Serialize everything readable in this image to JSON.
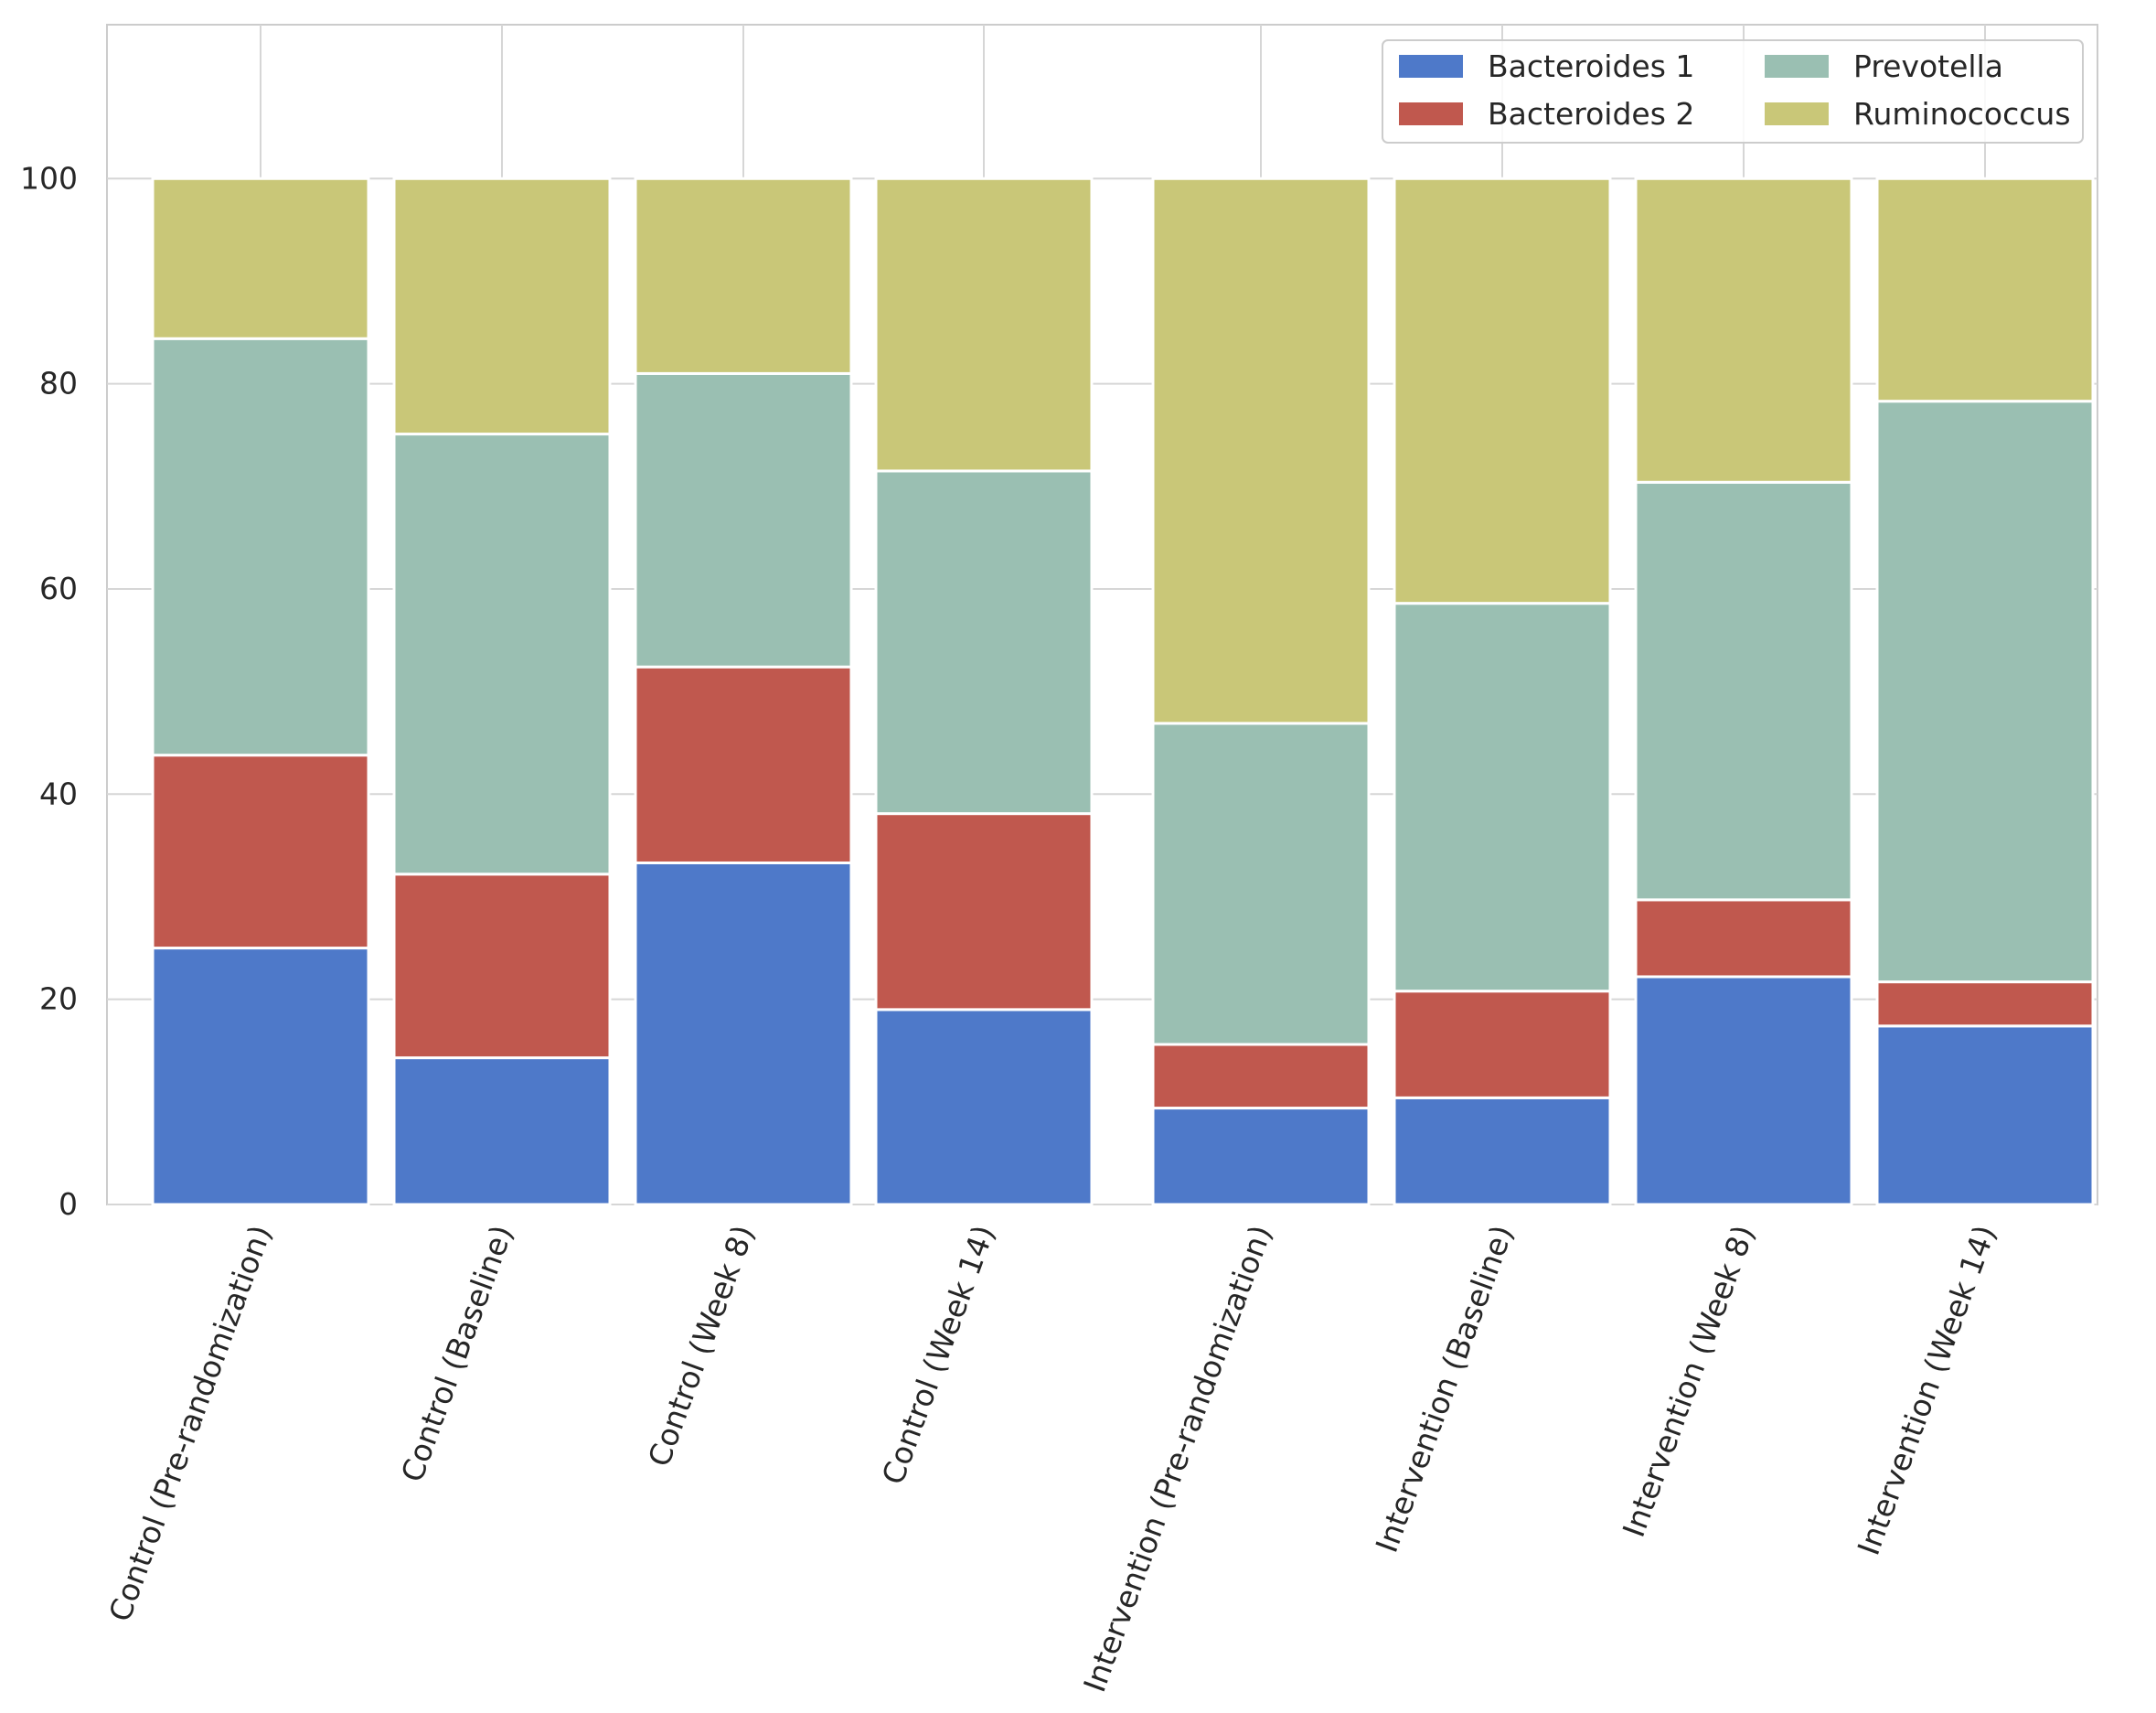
{
  "chart_data": {
    "type": "bar",
    "stacked": true,
    "title": "",
    "xlabel": "",
    "ylabel": "",
    "ylim": [
      0,
      115
    ],
    "yticks": [
      0,
      20,
      40,
      60,
      80,
      100
    ],
    "grid": true,
    "legend_position": "top-right",
    "categories": [
      "Control (Pre-randomization)",
      "Control (Baseline)",
      "Control (Week 8)",
      "Control (Week 14)",
      "Intervention (Pre-randomization)",
      "Intervention (Baseline)",
      "Intervention (Week 8)",
      "Intervention (Week 14)"
    ],
    "series": [
      {
        "name": "Bacteroides 1",
        "color": "#4e79c9",
        "values": [
          25.0,
          14.3,
          33.3,
          19.0,
          9.4,
          10.4,
          22.2,
          17.4
        ]
      },
      {
        "name": "Bacteroides 2",
        "color": "#c0584e",
        "values": [
          18.8,
          17.9,
          19.1,
          19.1,
          6.2,
          10.4,
          7.5,
          4.3
        ]
      },
      {
        "name": "Prevotella",
        "color": "#9abfb2",
        "values": [
          40.6,
          42.9,
          28.6,
          33.4,
          31.3,
          37.8,
          40.7,
          56.6
        ]
      },
      {
        "name": "Ruminococcus",
        "color": "#c9c778",
        "values": [
          15.6,
          24.9,
          19.0,
          28.5,
          53.1,
          41.4,
          29.6,
          21.7
        ]
      }
    ]
  }
}
